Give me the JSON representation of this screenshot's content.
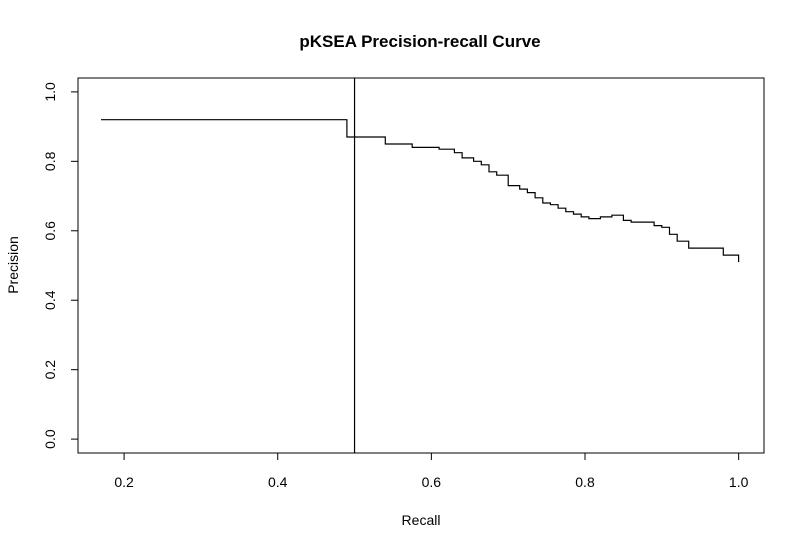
{
  "chart_data": {
    "type": "line",
    "title": "pKSEA Precision-recall Curve",
    "xlabel": "Recall",
    "ylabel": "Precision",
    "xlim": [
      0.14,
      1.033
    ],
    "ylim": [
      -0.04,
      1.04
    ],
    "xticks": [
      0.2,
      0.4,
      0.6,
      0.8,
      1.0
    ],
    "xtick_labels": [
      "0.2",
      "0.4",
      "0.6",
      "0.8",
      "1.0"
    ],
    "yticks": [
      0.0,
      0.2,
      0.4,
      0.6,
      0.8,
      1.0
    ],
    "ytick_labels": [
      "0.0",
      "0.2",
      "0.4",
      "0.6",
      "0.8",
      "1.0"
    ],
    "grid": false,
    "legend": "none",
    "vertical_line_x": 0.5,
    "series": [
      {
        "x": [
          0.17,
          0.49,
          0.49,
          0.54,
          0.54,
          0.575,
          0.575,
          0.61,
          0.61,
          0.63,
          0.63,
          0.64,
          0.64,
          0.655,
          0.655,
          0.665,
          0.665,
          0.675,
          0.675,
          0.685,
          0.685,
          0.7,
          0.7,
          0.715,
          0.715,
          0.725,
          0.725,
          0.735,
          0.735,
          0.745,
          0.745,
          0.755,
          0.755,
          0.765,
          0.765,
          0.775,
          0.775,
          0.785,
          0.785,
          0.795,
          0.795,
          0.805,
          0.805,
          0.82,
          0.82,
          0.835,
          0.835,
          0.85,
          0.85,
          0.86,
          0.86,
          0.89,
          0.89,
          0.9,
          0.9,
          0.91,
          0.91,
          0.92,
          0.92,
          0.935,
          0.935,
          0.98,
          0.98,
          1.0,
          1.0
        ],
        "y": [
          0.92,
          0.92,
          0.87,
          0.87,
          0.85,
          0.85,
          0.84,
          0.84,
          0.835,
          0.835,
          0.825,
          0.825,
          0.81,
          0.81,
          0.8,
          0.8,
          0.79,
          0.79,
          0.77,
          0.77,
          0.76,
          0.76,
          0.73,
          0.73,
          0.72,
          0.72,
          0.71,
          0.71,
          0.695,
          0.695,
          0.68,
          0.68,
          0.675,
          0.675,
          0.665,
          0.665,
          0.655,
          0.655,
          0.648,
          0.648,
          0.64,
          0.64,
          0.635,
          0.635,
          0.64,
          0.64,
          0.645,
          0.645,
          0.63,
          0.63,
          0.625,
          0.625,
          0.615,
          0.615,
          0.61,
          0.61,
          0.59,
          0.59,
          0.57,
          0.57,
          0.55,
          0.55,
          0.53,
          0.53,
          0.51
        ]
      }
    ]
  }
}
